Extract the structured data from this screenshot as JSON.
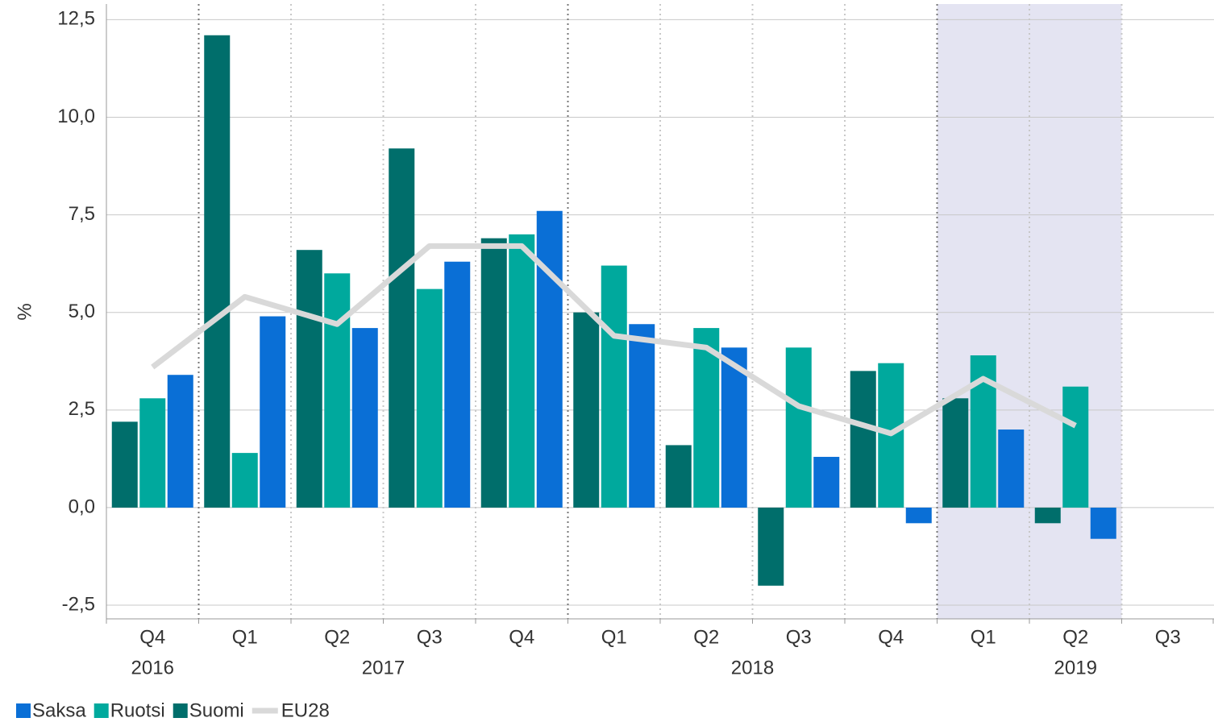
{
  "chart_data": {
    "type": "bar",
    "ylabel": "%",
    "categories": [
      "Q4",
      "Q1",
      "Q2",
      "Q3",
      "Q4",
      "Q1",
      "Q2",
      "Q3",
      "Q4",
      "Q1",
      "Q2",
      "Q3"
    ],
    "year_groups": [
      {
        "label": "2016",
        "count": 1
      },
      {
        "label": "2017",
        "count": 4
      },
      {
        "label": "2018",
        "count": 4
      },
      {
        "label": "2019",
        "count": 3
      }
    ],
    "highlight_categories": [
      9,
      10
    ],
    "series": [
      {
        "name": "Saksa",
        "color": "#0a6fd6",
        "type": "bar",
        "values": [
          3.4,
          4.9,
          4.6,
          6.3,
          7.6,
          4.7,
          4.1,
          1.3,
          -0.4,
          2.0,
          -0.8,
          null
        ]
      },
      {
        "name": "Ruotsi",
        "color": "#00a99d",
        "type": "bar",
        "values": [
          2.8,
          1.4,
          6.0,
          5.6,
          7.0,
          6.2,
          4.6,
          4.1,
          3.7,
          3.9,
          3.1,
          null
        ]
      },
      {
        "name": "Suomi",
        "color": "#006e6b",
        "type": "bar",
        "values": [
          2.2,
          12.1,
          6.6,
          9.2,
          6.9,
          5.0,
          1.6,
          -2.0,
          3.5,
          2.8,
          -0.4,
          null
        ]
      },
      {
        "name": "EU28",
        "color": "#d9d9d9",
        "type": "line",
        "values": [
          3.6,
          5.4,
          4.7,
          6.7,
          6.7,
          4.4,
          4.1,
          2.6,
          1.9,
          3.3,
          2.1,
          null
        ]
      }
    ],
    "ylim": [
      -2.85,
      12.9
    ],
    "yticks": [
      {
        "value": -2.5,
        "label": "-2,5"
      },
      {
        "value": 0,
        "label": "0,0"
      },
      {
        "value": 2.5,
        "label": "2,5"
      },
      {
        "value": 5,
        "label": "5,0"
      },
      {
        "value": 7.5,
        "label": "7,5"
      },
      {
        "value": 10,
        "label": "10,0"
      },
      {
        "value": 12.5,
        "label": "12,5"
      }
    ],
    "grid": true
  }
}
